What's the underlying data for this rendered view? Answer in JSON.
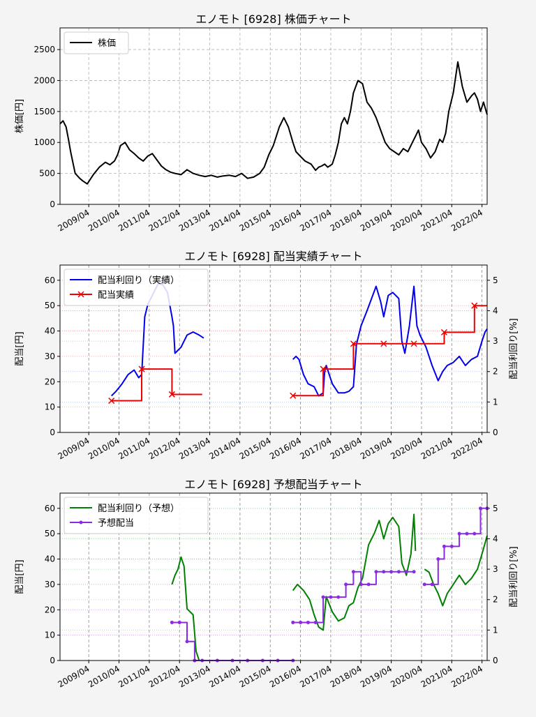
{
  "chart_data": [
    {
      "type": "line",
      "title": "エノモト [6928]  株価チャート",
      "ylabel": "株価[円]",
      "ylim": [
        0,
        2850
      ],
      "yticks": [
        0,
        500,
        1000,
        1500,
        2000,
        2500
      ],
      "xlim": [
        2008.3,
        2022.42
      ],
      "xticks": [
        "2009/04",
        "2010/04",
        "2011/04",
        "2012/04",
        "2013/04",
        "2014/04",
        "2015/04",
        "2016/04",
        "2017/04",
        "2018/04",
        "2019/04",
        "2020/04",
        "2021/04",
        "2022/04"
      ],
      "grid": true,
      "legend": {
        "position": "top-left",
        "entries": [
          "株価"
        ]
      },
      "series": [
        {
          "name": "株価",
          "color": "#000000",
          "x": [
            2008.3,
            2008.4,
            2008.5,
            2008.58,
            2008.65,
            2008.8,
            2008.95,
            2009.05,
            2009.2,
            2009.4,
            2009.6,
            2009.8,
            2009.95,
            2010.1,
            2010.2,
            2010.3,
            2010.45,
            2010.6,
            2010.75,
            2010.9,
            2011.05,
            2011.2,
            2011.35,
            2011.5,
            2011.65,
            2011.8,
            2011.95,
            2012.1,
            2012.3,
            2012.5,
            2012.7,
            2012.9,
            2013.1,
            2013.3,
            2013.5,
            2013.7,
            2013.9,
            2014.1,
            2014.3,
            2014.5,
            2014.7,
            2014.9,
            2015.05,
            2015.2,
            2015.35,
            2015.45,
            2015.55,
            2015.7,
            2015.85,
            2016.0,
            2016.1,
            2016.2,
            2016.4,
            2016.6,
            2016.75,
            2016.85,
            2016.95,
            2017.05,
            2017.15,
            2017.3,
            2017.4,
            2017.5,
            2017.6,
            2017.7,
            2017.8,
            2017.9,
            2018.0,
            2018.15,
            2018.3,
            2018.45,
            2018.6,
            2018.75,
            2018.9,
            2019.05,
            2019.2,
            2019.35,
            2019.5,
            2019.65,
            2019.8,
            2019.95,
            2020.05,
            2020.15,
            2020.25,
            2020.4,
            2020.55,
            2020.7,
            2020.85,
            2020.95,
            2021.05,
            2021.15,
            2021.3,
            2021.45,
            2021.6,
            2021.75,
            2021.9,
            2022.0,
            2022.1,
            2022.2,
            2022.3,
            2022.42
          ],
          "y": [
            1300,
            1350,
            1250,
            1050,
            850,
            500,
            420,
            380,
            330,
            480,
            600,
            680,
            640,
            700,
            800,
            950,
            1000,
            880,
            820,
            750,
            700,
            780,
            820,
            720,
            620,
            560,
            520,
            500,
            480,
            560,
            500,
            470,
            450,
            470,
            440,
            460,
            470,
            450,
            500,
            420,
            440,
            500,
            600,
            800,
            950,
            1100,
            1250,
            1400,
            1250,
            1000,
            850,
            800,
            700,
            650,
            550,
            600,
            620,
            650,
            600,
            650,
            800,
            1000,
            1300,
            1400,
            1300,
            1500,
            1800,
            2000,
            1950,
            1650,
            1550,
            1400,
            1200,
            1000,
            900,
            850,
            800,
            900,
            850,
            1000,
            1100,
            1200,
            1000,
            900,
            750,
            850,
            1050,
            1000,
            1150,
            1500,
            1800,
            2300,
            1900,
            1650,
            1750,
            1800,
            1700,
            1500,
            1650,
            1450
          ]
        }
      ]
    },
    {
      "type": "line",
      "title": "エノモト [6928]  配当実績チャート",
      "ylabel": "配当[円]",
      "y2label": "配当利回り[%]",
      "ylim": [
        0,
        66
      ],
      "yticks": [
        0,
        10,
        20,
        30,
        40,
        50,
        60
      ],
      "y2lim": [
        0,
        5.5
      ],
      "y2ticks": [
        0,
        1,
        2,
        3,
        4,
        5
      ],
      "xlim": [
        2008.3,
        2022.42
      ],
      "xticks": [
        "2009/04",
        "2010/04",
        "2011/04",
        "2012/04",
        "2013/04",
        "2014/04",
        "2015/04",
        "2016/04",
        "2017/04",
        "2018/04",
        "2019/04",
        "2020/04",
        "2021/04",
        "2022/04"
      ],
      "grid": true,
      "legend": {
        "position": "top-left",
        "entries": [
          "配当利回り（実績）",
          "配当実績"
        ]
      },
      "series": [
        {
          "name": "配当利回り（実績）",
          "color": "#0000ee",
          "axis": "right",
          "segments": [
            {
              "x": [
                2010.0,
                2010.15,
                2010.35,
                2010.55,
                2010.75,
                2010.9,
                2011.0,
                2011.1,
                2011.2,
                2011.4,
                2011.55,
                2011.7,
                2011.85,
                2012.0,
                2012.05,
                2012.1,
                2012.3,
                2012.5,
                2012.7,
                2012.9,
                2013.05
              ],
              "y": [
                1.2,
                1.35,
                1.6,
                1.9,
                2.05,
                1.8,
                1.9,
                3.8,
                4.2,
                4.6,
                4.9,
                4.85,
                4.6,
                3.8,
                3.5,
                2.6,
                2.8,
                3.2,
                3.3,
                3.2,
                3.1
              ]
            },
            {
              "x": [
                2016.0,
                2016.1,
                2016.2,
                2016.35,
                2016.5,
                2016.7,
                2016.85,
                2017.0,
                2017.05,
                2017.1,
                2017.3,
                2017.5,
                2017.7,
                2017.85,
                2018.0,
                2018.1,
                2018.25,
                2018.45,
                2018.6,
                2018.75,
                2018.9,
                2019.0,
                2019.15,
                2019.3,
                2019.5,
                2019.6,
                2019.7,
                2019.85,
                2020.0,
                2020.1,
                2020.2,
                2020.4,
                2020.6,
                2020.8,
                2020.95,
                2021.1,
                2021.3,
                2021.5,
                2021.7,
                2021.9,
                2022.1,
                2022.25,
                2022.35,
                2022.42
              ],
              "y": [
                2.4,
                2.5,
                2.4,
                1.9,
                1.6,
                1.5,
                1.2,
                1.3,
                2.0,
                2.2,
                1.6,
                1.3,
                1.3,
                1.35,
                1.5,
                2.9,
                3.5,
                4.0,
                4.4,
                4.8,
                4.3,
                3.8,
                4.5,
                4.6,
                4.4,
                3.0,
                2.6,
                3.5,
                4.8,
                3.5,
                3.2,
                2.8,
                2.2,
                1.7,
                2.0,
                2.2,
                2.3,
                2.5,
                2.2,
                2.4,
                2.5,
                3.0,
                3.3,
                3.4
              ]
            }
          ]
        },
        {
          "name": "配当実績",
          "color": "#ee0000",
          "axis": "left",
          "step": true,
          "segments": [
            {
              "x": [
                2010.0,
                2011.0,
                2012.0,
                2013.0
              ],
              "y": [
                12.5,
                25,
                15,
                15
              ]
            },
            {
              "x": [
                2016.0,
                2017.0,
                2018.0,
                2019.0,
                2020.0,
                2021.0,
                2022.0,
                2022.42
              ],
              "y": [
                14.5,
                25,
                35,
                35,
                35,
                39.5,
                50,
                50
              ]
            }
          ]
        }
      ]
    },
    {
      "type": "line",
      "title": "エノモト [6928]  予想配当チャート",
      "ylabel": "配当[円]",
      "y2label": "配当利回り[%]",
      "ylim": [
        0,
        66
      ],
      "yticks": [
        0,
        10,
        20,
        30,
        40,
        50,
        60
      ],
      "y2lim": [
        0,
        5.5
      ],
      "y2ticks": [
        0,
        1,
        2,
        3,
        4,
        5
      ],
      "xlim": [
        2008.3,
        2022.42
      ],
      "xticks": [
        "2009/04",
        "2010/04",
        "2011/04",
        "2012/04",
        "2013/04",
        "2014/04",
        "2015/04",
        "2016/04",
        "2017/04",
        "2018/04",
        "2019/04",
        "2020/04",
        "2021/04",
        "2022/04"
      ],
      "grid": true,
      "legend": {
        "position": "top-left",
        "entries": [
          "配当利回り（予想）",
          "予想配当"
        ]
      },
      "series": [
        {
          "name": "配当利回り（予想）",
          "color": "#008000",
          "axis": "right",
          "segments": [
            {
              "x": [
                2012.0,
                2012.1,
                2012.2,
                2012.3,
                2012.4,
                2012.5,
                2012.6,
                2012.7,
                2012.8,
                2012.9,
                2013.0
              ],
              "y": [
                2.5,
                2.8,
                3.0,
                3.4,
                3.1,
                1.7,
                1.6,
                1.5,
                0.3,
                0.0,
                0.0
              ]
            },
            {
              "x": [
                2016.0,
                2016.15,
                2016.35,
                2016.55,
                2016.7,
                2016.85,
                2017.0,
                2017.1,
                2017.3,
                2017.5,
                2017.7,
                2017.85,
                2018.0,
                2018.15,
                2018.3,
                2018.5,
                2018.7,
                2018.85,
                2019.0,
                2019.15,
                2019.3,
                2019.5,
                2019.6,
                2019.75,
                2019.9,
                2020.0,
                2020.05
              ],
              "y": [
                2.3,
                2.5,
                2.3,
                2.0,
                1.5,
                1.1,
                1.0,
                2.1,
                1.6,
                1.3,
                1.4,
                1.8,
                1.9,
                2.4,
                2.7,
                3.8,
                4.2,
                4.6,
                4.0,
                4.5,
                4.7,
                4.4,
                3.2,
                2.8,
                3.5,
                4.8,
                3.6
              ]
            },
            {
              "x": [
                2020.35,
                2020.5,
                2020.65,
                2020.8,
                2020.95,
                2021.1,
                2021.3,
                2021.5,
                2021.7,
                2021.9,
                2022.1,
                2022.25,
                2022.42
              ],
              "y": [
                3.0,
                2.9,
                2.5,
                2.2,
                1.8,
                2.2,
                2.5,
                2.8,
                2.5,
                2.7,
                3.0,
                3.5,
                4.1
              ]
            }
          ]
        },
        {
          "name": "予想配当",
          "color": "#8a2be2",
          "axis": "left",
          "step": true,
          "markers": true,
          "segments": [
            {
              "x": [
                2012.0,
                2012.25,
                2012.5,
                2012.75
              ],
              "y": [
                15,
                15,
                7.5,
                0
              ]
            },
            {
              "x": [
                2012.75,
                2013.0,
                2013.5,
                2014.0,
                2014.5,
                2015.0,
                2015.5,
                2016.0
              ],
              "y": [
                0,
                0,
                0,
                0,
                0,
                0,
                0,
                0
              ]
            },
            {
              "x": [
                2016.0,
                2016.25,
                2016.5,
                2016.75,
                2017.0,
                2017.25,
                2017.5,
                2017.75,
                2018.0,
                2018.25,
                2018.5,
                2018.75,
                2019.0,
                2019.25,
                2019.5,
                2019.75,
                2020.0
              ],
              "y": [
                15,
                15,
                15,
                15,
                25,
                25,
                25,
                30,
                35,
                30,
                30,
                35,
                35,
                35,
                35,
                35,
                35
              ]
            },
            {
              "x": [
                2020.35,
                2020.6,
                2020.8,
                2021.0,
                2021.25,
                2021.5,
                2021.75,
                2022.0,
                2022.2,
                2022.42
              ],
              "y": [
                30,
                30,
                40,
                45,
                45,
                50,
                50,
                50,
                60,
                60
              ]
            }
          ]
        }
      ]
    }
  ]
}
